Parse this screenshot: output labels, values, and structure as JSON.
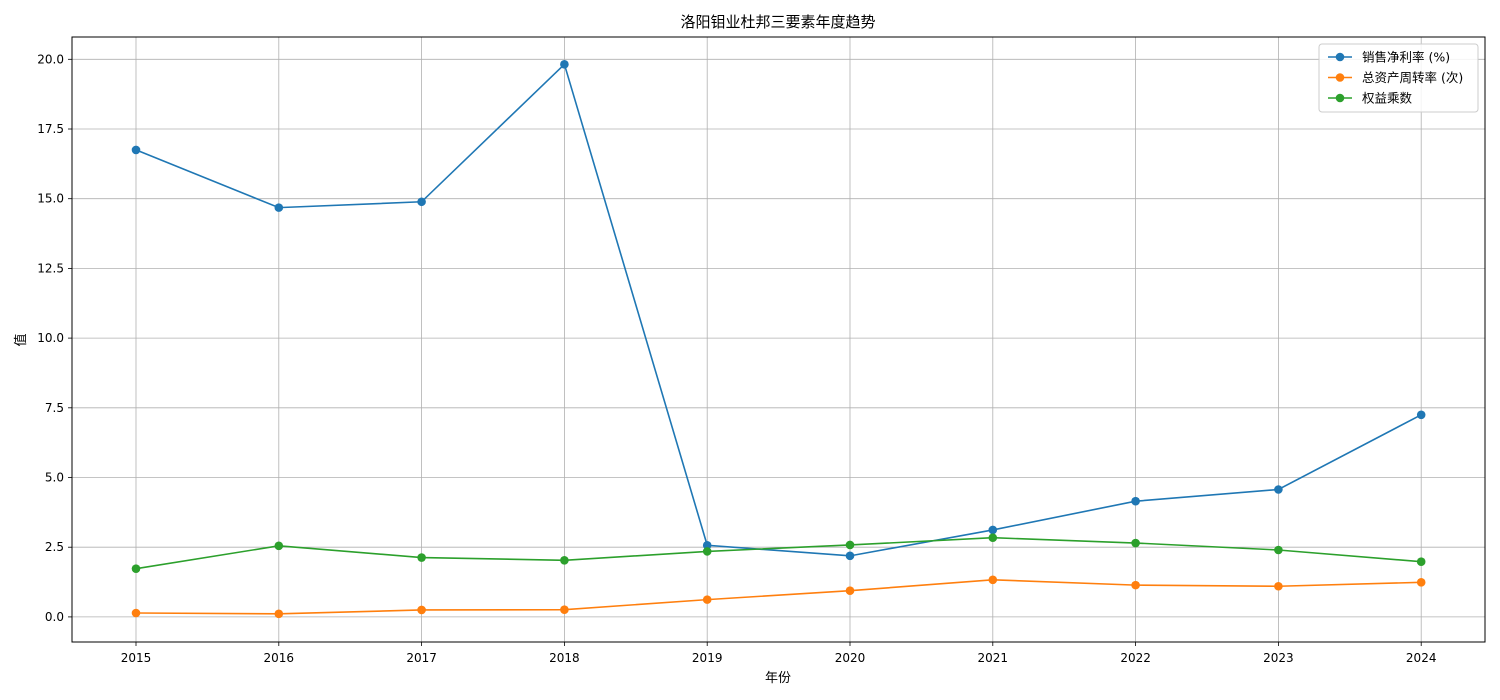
{
  "chart_data": {
    "type": "line",
    "title": "洛阳钼业杜邦三要素年度趋势",
    "xlabel": "年份",
    "ylabel": "值",
    "categories": [
      "2015",
      "2016",
      "2017",
      "2018",
      "2019",
      "2020",
      "2021",
      "2022",
      "2023",
      "2024"
    ],
    "series": [
      {
        "name": "销售净利率 (%)",
        "color": "#1f77b4",
        "values": [
          16.75,
          14.68,
          14.89,
          19.82,
          2.57,
          2.19,
          3.12,
          4.15,
          4.57,
          7.25
        ]
      },
      {
        "name": "总资产周转率 (次)",
        "color": "#ff7f0e",
        "values": [
          0.14,
          0.11,
          0.25,
          0.26,
          0.62,
          0.94,
          1.33,
          1.14,
          1.1,
          1.24
        ]
      },
      {
        "name": "权益乘数",
        "color": "#2ca02c",
        "values": [
          1.73,
          2.55,
          2.13,
          2.03,
          2.35,
          2.58,
          2.84,
          2.65,
          2.4,
          1.98
        ]
      }
    ],
    "ylim": [
      -0.9,
      20.8
    ],
    "yticks": [
      "0.0",
      "2.5",
      "5.0",
      "7.5",
      "10.0",
      "12.5",
      "15.0",
      "17.5",
      "20.0"
    ],
    "grid": true,
    "legend_position": "top-right",
    "marker": "circle"
  }
}
